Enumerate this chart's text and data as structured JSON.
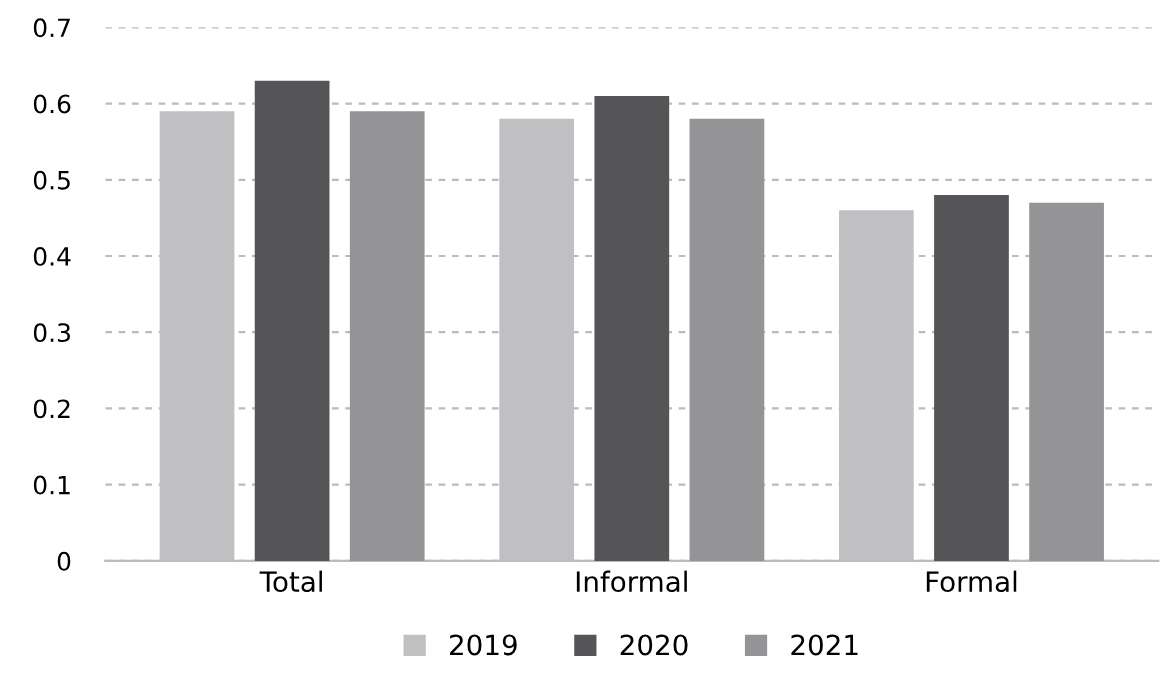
{
  "chart_data": {
    "type": "bar",
    "categories": [
      "Total",
      "Informal",
      "Formal"
    ],
    "series": [
      {
        "name": "2019",
        "color": "#c0c0c2",
        "values": [
          0.59,
          0.58,
          0.46
        ]
      },
      {
        "name": "2020",
        "color": "#555557",
        "values": [
          0.63,
          0.61,
          0.48
        ]
      },
      {
        "name": "2021",
        "color": "#949497",
        "values": [
          0.59,
          0.58,
          0.47
        ]
      }
    ],
    "ylim": [
      0,
      0.7
    ],
    "yticks": [
      0,
      0.1,
      0.2,
      0.3,
      0.4,
      0.5,
      0.6,
      0.7
    ],
    "grid": "y",
    "legend": "bottom"
  }
}
